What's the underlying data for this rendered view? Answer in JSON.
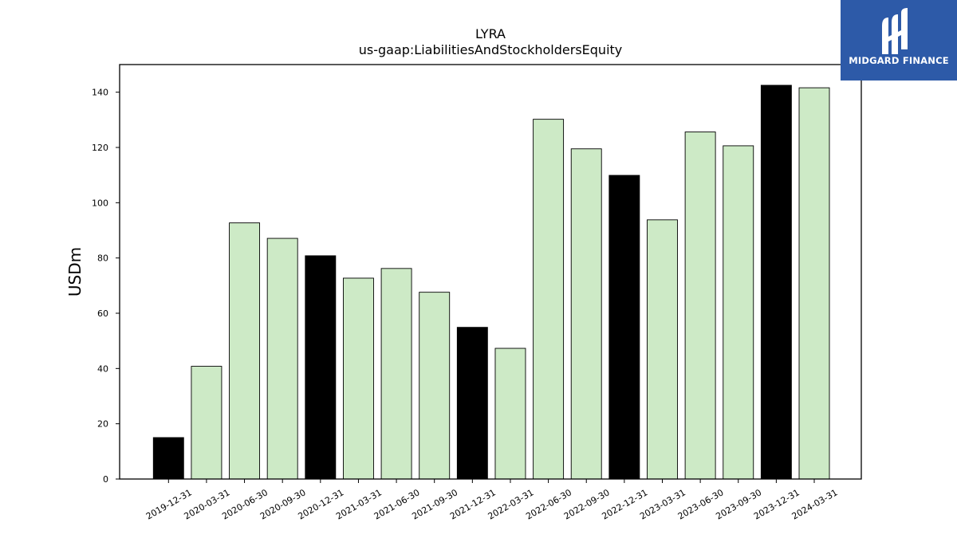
{
  "brand": {
    "name": "MIDGARD FINANCE",
    "logo_icon": "midgard-m-logo-icon",
    "background_color": "#2d5aa8"
  },
  "chart_data": {
    "type": "bar",
    "title": "LYRA",
    "subtitle": "us-gaap:LiabilitiesAndStockholdersEquity",
    "ylabel": "USDm",
    "xlabel": "",
    "ylim": [
      0,
      150
    ],
    "yticks": [
      0,
      20,
      40,
      60,
      80,
      100,
      120,
      140
    ],
    "grid": false,
    "colors": {
      "quarter": "#cdeac6",
      "year_end": "#000000",
      "edge": "#000000"
    },
    "categories": [
      "2019-12-31",
      "2020-03-31",
      "2020-06-30",
      "2020-09-30",
      "2020-12-31",
      "2021-03-31",
      "2021-06-30",
      "2021-09-30",
      "2021-12-31",
      "2022-03-31",
      "2022-06-30",
      "2022-09-30",
      "2022-12-31",
      "2023-03-31",
      "2023-06-30",
      "2023-09-30",
      "2023-12-31",
      "2024-03-31"
    ],
    "values": [
      15.0,
      40.8,
      92.7,
      87.1,
      80.8,
      72.7,
      76.2,
      67.6,
      54.9,
      47.3,
      130.2,
      119.5,
      109.9,
      93.8,
      125.6,
      120.6,
      142.5,
      141.6
    ],
    "year_end": [
      true,
      false,
      false,
      false,
      true,
      false,
      false,
      false,
      true,
      false,
      false,
      false,
      true,
      false,
      false,
      false,
      true,
      false
    ]
  }
}
